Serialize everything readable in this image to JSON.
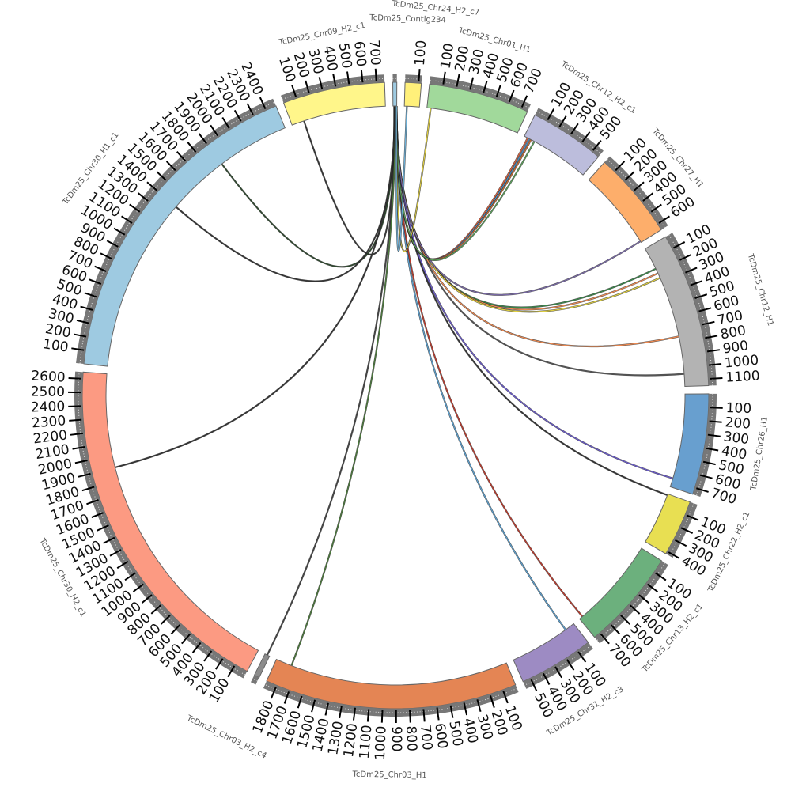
{
  "chart_data": {
    "type": "chord",
    "title": "",
    "tick_interval": 100,
    "segments": [
      {
        "name": "TcDm25_Contig234",
        "length": 30,
        "max_tick": 0,
        "color": "#9ecae1"
      },
      {
        "name": "TcDm25_Chr24_H2_c7",
        "length": 120,
        "max_tick": 100,
        "color": "#fff07a"
      },
      {
        "name": "TcDm25_Chr01_H1",
        "length": 750,
        "max_tick": 700,
        "color": "#a1d99b"
      },
      {
        "name": "TcDm25_Chr12_H2_c1",
        "length": 560,
        "max_tick": 500,
        "color": "#bcbddc"
      },
      {
        "name": "TcDm25_Chr27_H1",
        "length": 650,
        "max_tick": 600,
        "color": "#fdae6b"
      },
      {
        "name": "TcDm25_Chr12_H1",
        "length": 1150,
        "max_tick": 1100,
        "color": "#b3b3b3"
      },
      {
        "name": "TcDm25_Chr26_H1",
        "length": 750,
        "max_tick": 700,
        "color": "#689fcf"
      },
      {
        "name": "TcDm25_Chr22_H2_c1",
        "length": 420,
        "max_tick": 400,
        "color": "#e8df52"
      },
      {
        "name": "TcDm25_Chr13_H2_c1",
        "length": 750,
        "max_tick": 700,
        "color": "#6cb07d"
      },
      {
        "name": "TcDm25_Chr31_H2_c3",
        "length": 560,
        "max_tick": 500,
        "color": "#9d8bc3"
      },
      {
        "name": "TcDm25_Chr03_H1",
        "length": 1880,
        "max_tick": 1800,
        "color": "#e48554"
      },
      {
        "name": "TcDm25_Chr03_H2_c4",
        "length": 40,
        "max_tick": 0,
        "color": "#8c8c8c"
      },
      {
        "name": "TcDm25_Chr30_H2_c1",
        "length": 2650,
        "max_tick": 2600,
        "color": "#fc9a82"
      },
      {
        "name": "TcDm25_Chr30_H1_c1",
        "length": 2480,
        "max_tick": 2400,
        "color": "#9ecae1"
      },
      {
        "name": "TcDm25_Chr09_H2_c1",
        "length": 760,
        "max_tick": 700,
        "color": "#fff68a"
      }
    ],
    "links": [
      {
        "from": 14,
        "from_pos": 100,
        "to": 0,
        "to_pos": 10,
        "color": "#333333"
      },
      {
        "from": 13,
        "from_pos": 1900,
        "to": 0,
        "to_pos": 12,
        "color": "#2d4a2d"
      },
      {
        "from": 13,
        "from_pos": 1400,
        "to": 0,
        "to_pos": 14,
        "color": "#333333"
      },
      {
        "from": 12,
        "from_pos": 1900,
        "to": 0,
        "to_pos": 16,
        "color": "#333333"
      },
      {
        "from": 11,
        "from_pos": 20,
        "to": 0,
        "to_pos": 18,
        "color": "#444444"
      },
      {
        "from": 10,
        "from_pos": 1750,
        "to": 0,
        "to_pos": 20,
        "color": "#4a7a3a"
      },
      {
        "from": 9,
        "from_pos": 80,
        "to": 0,
        "to_pos": 22,
        "color": "#5aa0d0"
      },
      {
        "from": 8,
        "from_pos": 720,
        "to": 0,
        "to_pos": 24,
        "color": "#c0392b"
      },
      {
        "from": 7,
        "from_pos": 10,
        "to": 0,
        "to_pos": 25,
        "color": "#333333"
      },
      {
        "from": 6,
        "from_pos": 680,
        "to": 0,
        "to_pos": 26,
        "color": "#6a5acd"
      },
      {
        "from": 5,
        "from_pos": 1050,
        "to": 0,
        "to_pos": 27,
        "color": "#555555"
      },
      {
        "from": 5,
        "from_pos": 750,
        "to": 0,
        "to_pos": 28,
        "color": "#f08a50"
      },
      {
        "from": 5,
        "from_pos": 180,
        "to": 0,
        "to_pos": 28,
        "color": "#3a8a4a"
      },
      {
        "from": 5,
        "from_pos": 220,
        "to": 0,
        "to_pos": 29,
        "color": "#f08a50"
      },
      {
        "from": 5,
        "from_pos": 260,
        "to": 0,
        "to_pos": 29,
        "color": "#e0d040"
      },
      {
        "from": 4,
        "from_pos": 640,
        "to": 0,
        "to_pos": 29,
        "color": "#7a6aa8"
      },
      {
        "from": 3,
        "from_pos": 30,
        "to": 0,
        "to_pos": 29,
        "color": "#e0603a"
      },
      {
        "from": 3,
        "from_pos": 45,
        "to": 0,
        "to_pos": 29,
        "color": "#4a90c8"
      },
      {
        "from": 3,
        "from_pos": 60,
        "to": 0,
        "to_pos": 29,
        "color": "#c86a30"
      },
      {
        "from": 3,
        "from_pos": 90,
        "to": 0,
        "to_pos": 29,
        "color": "#5aa05a"
      },
      {
        "from": 2,
        "from_pos": 30,
        "to": 0,
        "to_pos": 29,
        "color": "#e0d040"
      },
      {
        "from": 1,
        "from_pos": 20,
        "to": 0,
        "to_pos": 28,
        "color": "#6aaed6"
      }
    ]
  }
}
